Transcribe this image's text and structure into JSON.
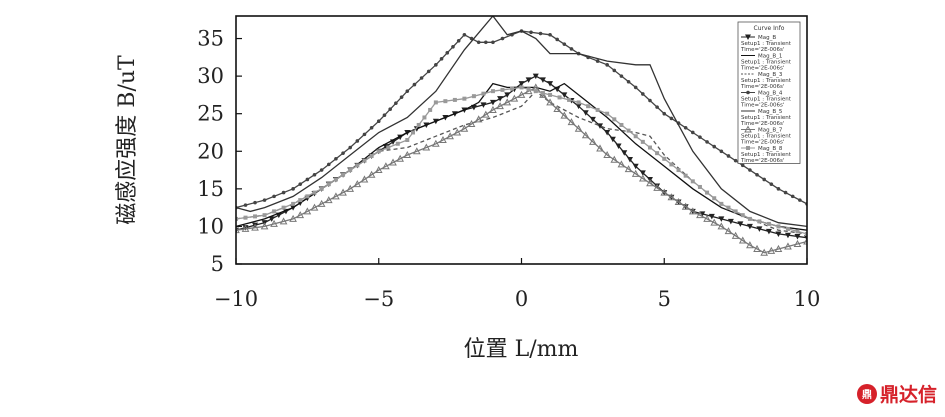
{
  "chart_data": {
    "type": "line",
    "xlabel": "位置 L/mm",
    "ylabel": "磁感应强度 B/uT",
    "xlim": [
      -10,
      10
    ],
    "ylim": [
      5,
      38
    ],
    "xticks": [
      -10,
      -5,
      0,
      5,
      10
    ],
    "yticks": [
      5,
      10,
      15,
      20,
      25,
      30,
      35
    ],
    "grid": false,
    "legend": {
      "title": "Curve Info",
      "placement": "top-right",
      "entries": [
        {
          "name": "Mag_B",
          "note": "Setup1 : Transient",
          "time": "Time='2E-006s'"
        },
        {
          "name": "Mag_B_1",
          "note": "Setup1 : Transient",
          "time": "Time='2E-006s'"
        },
        {
          "name": "Mag_B_3",
          "note": "Setup1 : Transient",
          "time": "Time='2E-006s'"
        },
        {
          "name": "Mag_B_4",
          "note": "Setup1 : Transient",
          "time": "Time='2E-006s'"
        },
        {
          "name": "Mag_B_5",
          "note": "Setup1 : Transient",
          "time": "Time='2E-006s'"
        },
        {
          "name": "Mag_B_7",
          "note": "Setup1 : Transient",
          "time": "Time='2E-006s'"
        },
        {
          "name": "Mag_B_8",
          "note": "Setup1 : Transient",
          "time": "Time='2E-006s'"
        }
      ]
    },
    "series": [
      {
        "name": "Mag_B",
        "color": "#222222",
        "marker": "triangle-down",
        "dash": "none",
        "x": [
          -10,
          -9,
          -8,
          -7,
          -6,
          -5,
          -4,
          -3,
          -2,
          -1,
          -0.5,
          0,
          0.5,
          1,
          2,
          3,
          4,
          5,
          6,
          7,
          8,
          9,
          10
        ],
        "y": [
          9.5,
          10.5,
          12.5,
          15,
          17.5,
          20,
          22.5,
          24,
          25.5,
          26.5,
          27.5,
          29,
          30,
          29,
          26,
          22.5,
          18,
          14.5,
          12,
          11,
          10,
          9,
          8.5
        ]
      },
      {
        "name": "Mag_B_1",
        "color": "#111111",
        "marker": "none",
        "dash": "none",
        "x": [
          -10,
          -9,
          -8,
          -7,
          -6,
          -5,
          -4,
          -3,
          -2,
          -1.5,
          -1,
          -0.5,
          0,
          0.5,
          1,
          1.5,
          2,
          3,
          4,
          5,
          6,
          7,
          8,
          9,
          10
        ],
        "y": [
          10,
          11,
          12.5,
          15,
          17.5,
          20.5,
          22.5,
          24,
          25.5,
          26.5,
          29,
          28.5,
          28.5,
          28.5,
          28,
          29,
          27.5,
          24.5,
          21,
          18,
          15,
          12.5,
          11,
          10,
          9.5
        ]
      },
      {
        "name": "Mag_B_3",
        "color": "#555555",
        "marker": "none",
        "dash": "4,3",
        "x": [
          -10,
          -9,
          -8,
          -7,
          -6,
          -5,
          -4,
          -3,
          -2,
          -1,
          0,
          0.5,
          1,
          2,
          3,
          4,
          4.5,
          5,
          6,
          7,
          8,
          9,
          10
        ],
        "y": [
          11,
          11.5,
          13,
          15,
          17.5,
          20,
          20.5,
          22,
          23.5,
          24.5,
          26,
          28,
          26.5,
          24.5,
          23,
          22.5,
          22,
          19.5,
          16,
          13,
          11,
          9.5,
          9
        ]
      },
      {
        "name": "Mag_B_4",
        "color": "#444444",
        "marker": "dot",
        "dash": "none",
        "x": [
          -10,
          -9,
          -8,
          -7,
          -6,
          -5,
          -4,
          -3,
          -2,
          -1.5,
          -1,
          0,
          1,
          2,
          3,
          4,
          5,
          6,
          7,
          8,
          9,
          10
        ],
        "y": [
          12.5,
          13.5,
          15,
          17.5,
          20.5,
          24,
          28,
          31.5,
          35.5,
          34.5,
          34.5,
          36,
          35.5,
          33,
          31.5,
          28.5,
          25,
          22.5,
          20,
          17.5,
          15,
          13
        ]
      },
      {
        "name": "Mag_B_5",
        "color": "#333333",
        "marker": "none",
        "dash": "none",
        "x": [
          -10,
          -9.5,
          -9,
          -8,
          -7,
          -6,
          -5,
          -4,
          -3,
          -2,
          -1,
          -0.5,
          0,
          0.5,
          1,
          2,
          3,
          4,
          4.5,
          5,
          6,
          7,
          8,
          9,
          10
        ],
        "y": [
          12.5,
          12,
          12.5,
          14,
          16.5,
          19.5,
          22.5,
          24.5,
          28,
          33.5,
          38,
          35.5,
          36,
          35,
          33,
          33,
          32,
          31.5,
          31.5,
          27,
          20,
          15,
          12,
          10.5,
          10
        ]
      },
      {
        "name": "Mag_B_7",
        "color": "#777777",
        "marker": "triangle-up",
        "dash": "none",
        "x": [
          -10,
          -9,
          -8,
          -7,
          -6,
          -5,
          -4,
          -3,
          -2,
          -1,
          0,
          0.5,
          1,
          2,
          3,
          4,
          5,
          6,
          7,
          8,
          8.5,
          9,
          10
        ],
        "y": [
          9.5,
          10,
          11,
          13,
          15,
          17.5,
          19.5,
          21,
          23,
          25.5,
          27.5,
          28.5,
          26.5,
          23,
          19.5,
          17,
          14.5,
          12,
          10,
          7.5,
          6.5,
          7,
          8
        ]
      },
      {
        "name": "Mag_B_8",
        "color": "#999999",
        "marker": "square",
        "dash": "none",
        "x": [
          -10,
          -9,
          -8,
          -7,
          -6,
          -5,
          -4,
          -3,
          -2,
          -1,
          0,
          0.5,
          1,
          2,
          3,
          4,
          5,
          6,
          7,
          8,
          9,
          10
        ],
        "y": [
          11,
          11.5,
          13,
          15,
          17.5,
          20,
          21.5,
          26.5,
          27,
          28,
          28.5,
          28,
          27.5,
          26.5,
          25,
          22,
          19,
          16,
          13,
          11,
          10,
          9
        ]
      }
    ]
  },
  "watermark": {
    "logo_glyph": "鼎",
    "text": "鼎达信"
  }
}
